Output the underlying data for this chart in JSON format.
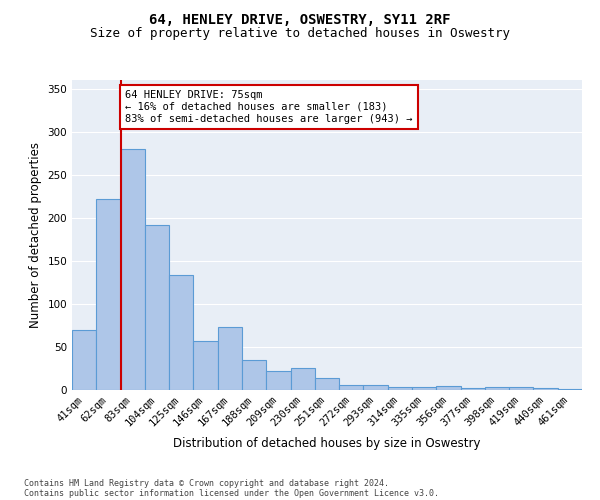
{
  "title": "64, HENLEY DRIVE, OSWESTRY, SY11 2RF",
  "subtitle": "Size of property relative to detached houses in Oswestry",
  "xlabel": "Distribution of detached houses by size in Oswestry",
  "ylabel": "Number of detached properties",
  "categories": [
    "41sqm",
    "62sqm",
    "83sqm",
    "104sqm",
    "125sqm",
    "146sqm",
    "167sqm",
    "188sqm",
    "209sqm",
    "230sqm",
    "251sqm",
    "272sqm",
    "293sqm",
    "314sqm",
    "335sqm",
    "356sqm",
    "377sqm",
    "398sqm",
    "419sqm",
    "440sqm",
    "461sqm"
  ],
  "values": [
    70,
    222,
    280,
    192,
    133,
    57,
    73,
    35,
    22,
    25,
    14,
    6,
    6,
    3,
    4,
    5,
    2,
    4,
    4,
    2,
    1
  ],
  "bar_color": "#aec6e8",
  "bar_edge_color": "#5b9bd5",
  "vline_color": "#cc0000",
  "annotation_text": "64 HENLEY DRIVE: 75sqm\n← 16% of detached houses are smaller (183)\n83% of semi-detached houses are larger (943) →",
  "annotation_box_color": "#ffffff",
  "annotation_box_edge": "#cc0000",
  "ylim": [
    0,
    360
  ],
  "yticks": [
    0,
    50,
    100,
    150,
    200,
    250,
    300,
    350
  ],
  "bg_color": "#e8eef6",
  "footer1": "Contains HM Land Registry data © Crown copyright and database right 2024.",
  "footer2": "Contains public sector information licensed under the Open Government Licence v3.0.",
  "title_fontsize": 10,
  "subtitle_fontsize": 9,
  "tick_fontsize": 7.5,
  "ylabel_fontsize": 8.5,
  "xlabel_fontsize": 8.5,
  "footer_fontsize": 6.0
}
